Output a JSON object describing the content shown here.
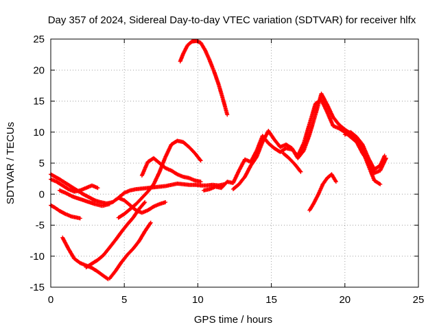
{
  "chart_data": {
    "type": "scatter",
    "title": "Day 357 of 2024, Sidereal Day-to-day VTEC variation (SDTVAR) for receiver hlfx",
    "xlabel": "GPS time / hours",
    "ylabel": "SDTVAR / TECUs",
    "xlim": [
      0,
      25
    ],
    "ylim": [
      -15,
      25
    ],
    "xticks": [
      0,
      5,
      10,
      15,
      20,
      25
    ],
    "yticks": [
      -15,
      -10,
      -5,
      0,
      5,
      10,
      15,
      20,
      25
    ],
    "grid": true,
    "marker": "+",
    "color": "#ff0000",
    "series": [
      {
        "name": "s1",
        "x": [
          0.0,
          0.3,
          0.6,
          1.0,
          1.4,
          1.8,
          2.2,
          2.6,
          3.0,
          3.4,
          3.8,
          4.2,
          4.6,
          5.0,
          5.4,
          5.8,
          6.2,
          6.6,
          7.0,
          7.4,
          7.8,
          8.2,
          8.6,
          9.0,
          9.4,
          9.8,
          10.2,
          10.6,
          11.0,
          11.4,
          11.8
        ],
        "y": [
          3.2,
          2.8,
          2.4,
          1.8,
          1.2,
          0.6,
          0.0,
          -0.5,
          -1.0,
          -1.3,
          -1.5,
          -1.3,
          -0.6,
          0.2,
          0.6,
          0.8,
          0.9,
          1.0,
          1.1,
          1.2,
          1.3,
          1.5,
          1.7,
          1.6,
          1.5,
          1.5,
          1.4,
          1.4,
          1.5,
          1.4,
          1.6
        ]
      },
      {
        "name": "s2",
        "x": [
          0.0,
          0.3,
          0.6,
          1.0,
          1.4,
          1.8,
          2.0
        ],
        "y": [
          -1.8,
          -2.2,
          -2.7,
          -3.2,
          -3.6,
          -3.8,
          -3.9
        ]
      },
      {
        "name": "s3",
        "x": [
          0.8,
          1.2,
          1.6,
          2.0,
          2.4,
          2.8,
          3.2,
          3.6,
          3.9
        ],
        "y": [
          -7.0,
          -8.8,
          -10.4,
          -11.1,
          -11.5,
          -11.9,
          -12.5,
          -13.2,
          -13.7
        ]
      },
      {
        "name": "s4",
        "x": [
          2.4,
          2.8,
          3.2,
          3.6,
          4.0,
          4.4,
          4.8,
          5.2,
          5.6,
          6.0,
          6.4
        ],
        "y": [
          -11.8,
          -11.2,
          -10.6,
          -9.8,
          -8.6,
          -7.4,
          -6.1,
          -4.9,
          -3.8,
          -2.4,
          -1.3
        ]
      },
      {
        "name": "s5",
        "x": [
          4.0,
          4.4,
          4.8,
          5.2,
          5.6,
          6.0,
          6.4,
          6.8
        ],
        "y": [
          -13.6,
          -12.4,
          -11.0,
          -9.8,
          -8.8,
          -7.6,
          -6.0,
          -4.6
        ]
      },
      {
        "name": "s6",
        "x": [
          0.0,
          0.4,
          0.8,
          1.2,
          1.6,
          2.0,
          2.4,
          2.8,
          3.2
        ],
        "y": [
          2.4,
          2.0,
          1.4,
          0.8,
          0.4,
          0.6,
          1.0,
          1.4,
          1.0
        ]
      },
      {
        "name": "s7",
        "x": [
          0.6,
          1.0,
          1.5,
          2.0,
          2.5,
          3.0,
          3.5,
          4.0
        ],
        "y": [
          0.6,
          0.2,
          -0.4,
          -0.8,
          -1.2,
          -1.6,
          -1.9,
          -1.6
        ]
      },
      {
        "name": "s8",
        "x": [
          4.6,
          5.0,
          5.4,
          5.8,
          6.2,
          6.6,
          7.0,
          7.4,
          7.8
        ],
        "y": [
          -0.6,
          -1.0,
          -1.8,
          -2.6,
          -3.0,
          -2.6,
          -2.0,
          -1.6,
          -1.3
        ]
      },
      {
        "name": "s9",
        "x": [
          4.6,
          5.0,
          5.4,
          5.8,
          6.2,
          6.6,
          7.0,
          7.4,
          7.8,
          8.2,
          8.6,
          9.0,
          9.4,
          9.8,
          10.2
        ],
        "y": [
          -3.8,
          -3.2,
          -2.4,
          -1.6,
          -0.6,
          0.4,
          1.6,
          3.6,
          6.0,
          8.0,
          8.6,
          8.4,
          7.6,
          6.6,
          5.4
        ]
      },
      {
        "name": "s10",
        "x": [
          6.2,
          6.6,
          7.0,
          7.4,
          7.8,
          8.2,
          8.6,
          9.0,
          9.4,
          9.8,
          10.2
        ],
        "y": [
          3.0,
          5.2,
          5.8,
          5.0,
          4.2,
          3.8,
          3.2,
          2.8,
          2.6,
          2.2,
          2.0
        ]
      },
      {
        "name": "s11",
        "x": [
          8.8,
          9.0,
          9.3,
          9.6,
          9.9,
          10.2,
          10.5,
          10.8,
          11.1,
          11.4,
          11.7,
          12.0
        ],
        "y": [
          21.4,
          22.6,
          24.0,
          24.6,
          24.7,
          24.4,
          23.2,
          21.6,
          19.8,
          17.8,
          15.4,
          12.8
        ]
      },
      {
        "name": "s12",
        "x": [
          10.4,
          10.8,
          11.2,
          11.6,
          12.0,
          12.4,
          12.8,
          13.2,
          13.6,
          14.0,
          14.4,
          14.8,
          15.2,
          15.6,
          16.0,
          16.4,
          16.8,
          17.2,
          17.6,
          18.0,
          18.4,
          18.8,
          19.2,
          19.6,
          20.0,
          20.4,
          20.8,
          21.2,
          21.6,
          22.0,
          22.4,
          22.8
        ],
        "y": [
          0.6,
          0.8,
          1.2,
          1.0,
          2.0,
          1.8,
          3.8,
          5.6,
          5.2,
          7.0,
          9.4,
          8.2,
          7.4,
          6.8,
          7.4,
          7.2,
          6.2,
          8.2,
          11.4,
          14.6,
          15.2,
          13.2,
          11.0,
          10.6,
          10.0,
          9.2,
          8.4,
          6.6,
          5.2,
          3.4,
          3.8,
          5.8
        ]
      },
      {
        "name": "s13",
        "x": [
          12.4,
          12.8,
          13.2,
          13.6,
          14.0,
          14.4,
          14.8,
          15.2,
          15.6,
          16.0,
          16.4,
          16.8,
          17.2,
          17.6,
          18.0,
          18.4,
          18.8,
          19.2,
          19.6,
          20.0,
          20.4,
          20.8,
          21.2,
          21.6,
          22.0,
          22.4
        ],
        "y": [
          0.8,
          1.6,
          2.8,
          4.6,
          6.0,
          8.4,
          10.2,
          8.8,
          7.6,
          8.0,
          7.4,
          5.8,
          7.0,
          9.6,
          12.8,
          16.2,
          14.4,
          12.4,
          11.2,
          10.4,
          9.8,
          8.6,
          7.0,
          4.6,
          2.2,
          1.6
        ]
      },
      {
        "name": "s14",
        "x": [
          15.8,
          16.2,
          16.6,
          17.0
        ],
        "y": [
          6.6,
          5.8,
          4.8,
          3.6
        ]
      },
      {
        "name": "s15",
        "x": [
          17.6,
          17.9,
          18.2,
          18.5,
          18.8,
          19.1,
          19.4
        ],
        "y": [
          -2.6,
          -1.4,
          0.0,
          1.6,
          2.6,
          3.2,
          2.0
        ]
      },
      {
        "name": "s16",
        "x": [
          20.0,
          20.4,
          20.8,
          21.2,
          21.6,
          22.0,
          22.4,
          22.7
        ],
        "y": [
          9.6,
          10.0,
          9.2,
          8.0,
          5.8,
          4.0,
          4.6,
          6.2
        ]
      }
    ]
  }
}
